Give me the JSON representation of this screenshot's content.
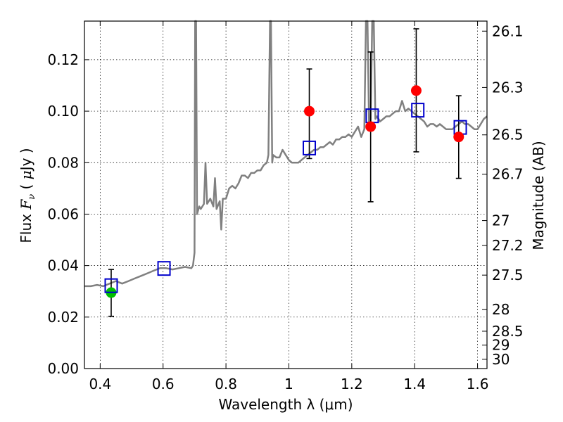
{
  "chart_data": {
    "type": "scatter",
    "xlabel": "Wavelength  λ (μm)",
    "ylabel": "Flux  F_ν  ( μJy )",
    "ylabel_right": "Magnitude (AB)",
    "xlim": [
      0.35,
      1.63
    ],
    "ylim": [
      0.0,
      0.135
    ],
    "grid": true,
    "x_ticks": [
      0.4,
      0.6,
      0.8,
      1.0,
      1.2,
      1.4,
      1.6
    ],
    "x_tick_labels": [
      "0.4",
      "0.6",
      "0.8",
      "1",
      "1.2",
      "1.4",
      "1.6"
    ],
    "y_ticks": [
      0.0,
      0.02,
      0.04,
      0.06,
      0.08,
      0.1,
      0.12
    ],
    "y_tick_labels": [
      "0.00",
      "0.02",
      "0.04",
      "0.06",
      "0.08",
      "0.10",
      "0.12"
    ],
    "right_ticks": [
      {
        "label": "26.1",
        "flux": 0.1311
      },
      {
        "label": "26.3",
        "flux": 0.1092
      },
      {
        "label": "26.5",
        "flux": 0.0908
      },
      {
        "label": "26.7",
        "flux": 0.0755
      },
      {
        "label": "27",
        "flux": 0.0575
      },
      {
        "label": "27.2",
        "flux": 0.0478
      },
      {
        "label": "27.5",
        "flux": 0.0363
      },
      {
        "label": "28",
        "flux": 0.0229
      },
      {
        "label": "28.5",
        "flux": 0.0145
      },
      {
        "label": "29",
        "flux": 0.0091
      },
      {
        "label": "30",
        "flux": 0.0036
      }
    ],
    "spectrum": [
      [
        0.35,
        0.032
      ],
      [
        0.37,
        0.032
      ],
      [
        0.39,
        0.0325
      ],
      [
        0.41,
        0.032
      ],
      [
        0.43,
        0.033
      ],
      [
        0.45,
        0.034
      ],
      [
        0.47,
        0.033
      ],
      [
        0.49,
        0.034
      ],
      [
        0.51,
        0.035
      ],
      [
        0.53,
        0.036
      ],
      [
        0.55,
        0.037
      ],
      [
        0.57,
        0.038
      ],
      [
        0.59,
        0.039
      ],
      [
        0.61,
        0.039
      ],
      [
        0.63,
        0.0385
      ],
      [
        0.65,
        0.039
      ],
      [
        0.67,
        0.0395
      ],
      [
        0.69,
        0.039
      ],
      [
        0.695,
        0.04
      ],
      [
        0.7,
        0.045
      ],
      [
        0.702,
        0.135
      ],
      [
        0.705,
        0.135
      ],
      [
        0.708,
        0.06
      ],
      [
        0.715,
        0.063
      ],
      [
        0.72,
        0.062
      ],
      [
        0.73,
        0.064
      ],
      [
        0.735,
        0.08
      ],
      [
        0.74,
        0.064
      ],
      [
        0.75,
        0.066
      ],
      [
        0.76,
        0.063
      ],
      [
        0.765,
        0.074
      ],
      [
        0.77,
        0.062
      ],
      [
        0.78,
        0.065
      ],
      [
        0.785,
        0.054
      ],
      [
        0.79,
        0.066
      ],
      [
        0.8,
        0.066
      ],
      [
        0.81,
        0.07
      ],
      [
        0.82,
        0.071
      ],
      [
        0.83,
        0.07
      ],
      [
        0.84,
        0.072
      ],
      [
        0.85,
        0.075
      ],
      [
        0.86,
        0.075
      ],
      [
        0.87,
        0.074
      ],
      [
        0.88,
        0.076
      ],
      [
        0.89,
        0.076
      ],
      [
        0.9,
        0.077
      ],
      [
        0.91,
        0.077
      ],
      [
        0.92,
        0.079
      ],
      [
        0.93,
        0.08
      ],
      [
        0.935,
        0.083
      ],
      [
        0.94,
        0.135
      ],
      [
        0.943,
        0.135
      ],
      [
        0.947,
        0.08
      ],
      [
        0.95,
        0.083
      ],
      [
        0.96,
        0.082
      ],
      [
        0.97,
        0.082
      ],
      [
        0.98,
        0.085
      ],
      [
        0.99,
        0.083
      ],
      [
        1.0,
        0.081
      ],
      [
        1.01,
        0.08
      ],
      [
        1.02,
        0.08
      ],
      [
        1.03,
        0.08
      ],
      [
        1.04,
        0.081
      ],
      [
        1.05,
        0.082
      ],
      [
        1.06,
        0.083
      ],
      [
        1.07,
        0.084
      ],
      [
        1.08,
        0.085
      ],
      [
        1.09,
        0.085
      ],
      [
        1.1,
        0.086
      ],
      [
        1.11,
        0.086
      ],
      [
        1.12,
        0.087
      ],
      [
        1.13,
        0.088
      ],
      [
        1.14,
        0.087
      ],
      [
        1.15,
        0.089
      ],
      [
        1.16,
        0.089
      ],
      [
        1.17,
        0.09
      ],
      [
        1.18,
        0.09
      ],
      [
        1.19,
        0.091
      ],
      [
        1.2,
        0.09
      ],
      [
        1.21,
        0.092
      ],
      [
        1.22,
        0.094
      ],
      [
        1.23,
        0.09
      ],
      [
        1.24,
        0.093
      ],
      [
        1.245,
        0.135
      ],
      [
        1.25,
        0.135
      ],
      [
        1.255,
        0.095
      ],
      [
        1.26,
        0.096
      ],
      [
        1.265,
        0.135
      ],
      [
        1.27,
        0.135
      ],
      [
        1.275,
        0.097
      ],
      [
        1.28,
        0.098
      ],
      [
        1.29,
        0.096
      ],
      [
        1.3,
        0.097
      ],
      [
        1.31,
        0.098
      ],
      [
        1.32,
        0.098
      ],
      [
        1.33,
        0.099
      ],
      [
        1.34,
        0.1
      ],
      [
        1.35,
        0.1
      ],
      [
        1.36,
        0.104
      ],
      [
        1.37,
        0.1
      ],
      [
        1.38,
        0.101
      ],
      [
        1.39,
        0.1
      ],
      [
        1.4,
        0.099
      ],
      [
        1.41,
        0.098
      ],
      [
        1.42,
        0.097
      ],
      [
        1.43,
        0.096
      ],
      [
        1.44,
        0.094
      ],
      [
        1.45,
        0.095
      ],
      [
        1.46,
        0.095
      ],
      [
        1.47,
        0.094
      ],
      [
        1.48,
        0.095
      ],
      [
        1.49,
        0.094
      ],
      [
        1.5,
        0.093
      ],
      [
        1.51,
        0.093
      ],
      [
        1.52,
        0.093
      ],
      [
        1.53,
        0.094
      ],
      [
        1.54,
        0.095
      ],
      [
        1.55,
        0.096
      ],
      [
        1.56,
        0.095
      ],
      [
        1.57,
        0.095
      ],
      [
        1.58,
        0.094
      ],
      [
        1.59,
        0.093
      ],
      [
        1.6,
        0.093
      ],
      [
        1.61,
        0.095
      ],
      [
        1.62,
        0.097
      ],
      [
        1.63,
        0.098
      ]
    ],
    "observed_red": [
      {
        "x": 1.065,
        "y": 0.1,
        "ylo": 0.0816,
        "yhi": 0.1164
      },
      {
        "x": 1.26,
        "y": 0.094,
        "ylo": 0.0648,
        "yhi": 0.123
      },
      {
        "x": 1.405,
        "y": 0.108,
        "ylo": 0.0842,
        "yhi": 0.132
      },
      {
        "x": 1.54,
        "y": 0.09,
        "ylo": 0.0739,
        "yhi": 0.106
      }
    ],
    "observed_green": [
      {
        "x": 0.435,
        "y": 0.0295,
        "ylo": 0.0203,
        "yhi": 0.0385
      }
    ],
    "model_boxes": [
      {
        "x": 0.435,
        "y": 0.0322
      },
      {
        "x": 0.603,
        "y": 0.0389
      },
      {
        "x": 1.065,
        "y": 0.0857
      },
      {
        "x": 1.265,
        "y": 0.0982
      },
      {
        "x": 1.41,
        "y": 0.1004
      },
      {
        "x": 1.545,
        "y": 0.0937
      }
    ],
    "colors": {
      "spectrum": "#808080",
      "red_point": "#ff0000",
      "green_point": "#00bf00",
      "model_box": "#0000cc",
      "grid": "#000000"
    }
  }
}
